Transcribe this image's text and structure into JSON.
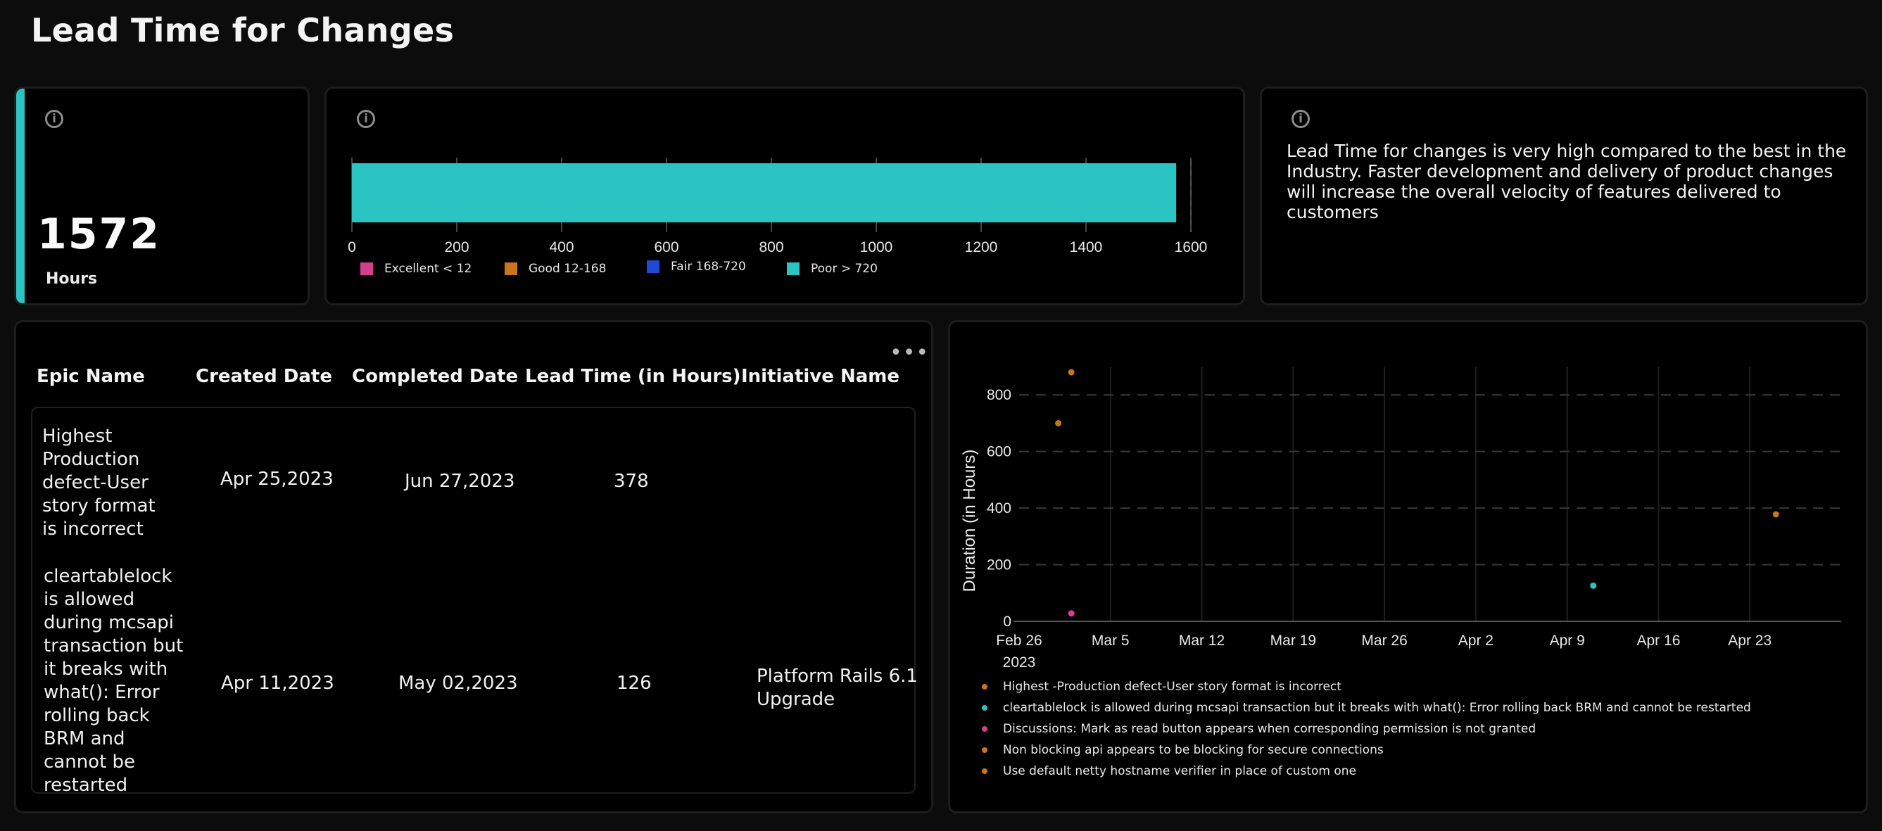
{
  "page": {
    "title": "Lead Time for Changes"
  },
  "metric": {
    "value": "1572",
    "unit": "Hours"
  },
  "bar_gauge": {
    "ticks": [
      "0",
      "200",
      "400",
      "600",
      "800",
      "1000",
      "1200",
      "1400",
      "1600"
    ],
    "axis_min": 0,
    "axis_max": 1600,
    "value": 1572,
    "bar_color": "#2ac5c3",
    "legend": [
      {
        "label": "Excellent < 12",
        "color": "#d43f8d"
      },
      {
        "label": "Good 12-168",
        "color": "#c8751b"
      },
      {
        "label": "Fair 168-720",
        "color": "#1f49d6"
      },
      {
        "label": "Poor > 720",
        "color": "#2ac5c3"
      }
    ]
  },
  "insight": {
    "text": "Lead Time for changes is very high compared to the best in the Industry. Faster development and delivery of product changes will increase the overall velocity of features delivered to customers"
  },
  "table": {
    "columns": [
      "Epic Name",
      "Created Date",
      "Completed Date",
      "Lead Time (in Hours)",
      "Initiative Name"
    ],
    "rows": [
      {
        "epic": "Highest Production defect-User story format is incorrect",
        "created": "Apr 25,2023",
        "completed": "Jun 27,2023",
        "lead_time": "378",
        "initiative": ""
      },
      {
        "epic": "cleartablelock is allowed during mcsapi transaction but it breaks with what(): Error rolling back BRM and cannot be restarted",
        "created": "Apr 11,2023",
        "completed": "May 02,2023",
        "lead_time": "126",
        "initiative": "Platform Rails 6.1 Upgrade"
      }
    ]
  },
  "chart_data": {
    "type": "scatter",
    "ylabel": "Duration (in Hours)",
    "x_ticks": [
      "Feb 26",
      "Mar 5",
      "Mar 12",
      "Mar 19",
      "Mar 26",
      "Apr 2",
      "Apr 9",
      "Apr 16",
      "Apr 23"
    ],
    "x_year_label": "2023",
    "x_range": [
      "2023-02-26",
      "2023-04-30"
    ],
    "y_ticks": [
      "0",
      "200",
      "400",
      "600",
      "800"
    ],
    "ylim": [
      0,
      900
    ],
    "grid": true,
    "legend_position": "bottom",
    "series": [
      {
        "name": "Highest -Production defect-User story format is incorrect",
        "color": "#c8751b",
        "points": [
          {
            "x": "2023-04-25",
            "y": 378
          }
        ]
      },
      {
        "name": "cleartablelock is allowed during mcsapi transaction but it breaks with what(): Error rolling back BRM and cannot be restarted",
        "color": "#2ac5c3",
        "points": [
          {
            "x": "2023-04-11",
            "y": 126
          }
        ]
      },
      {
        "name": "Discussions: Mark as read button appears when corresponding permission is not granted",
        "color": "#d43f8d",
        "points": [
          {
            "x": "2023-03-02",
            "y": 28
          }
        ]
      },
      {
        "name": "Non blocking api appears to be blocking for secure connections",
        "color": "#c8751b",
        "points": [
          {
            "x": "2023-03-01",
            "y": 700
          }
        ]
      },
      {
        "name": "Use default netty hostname verifier in place of custom one",
        "color": "#c8751b",
        "points": [
          {
            "x": "2023-03-02",
            "y": 880
          }
        ]
      }
    ]
  }
}
